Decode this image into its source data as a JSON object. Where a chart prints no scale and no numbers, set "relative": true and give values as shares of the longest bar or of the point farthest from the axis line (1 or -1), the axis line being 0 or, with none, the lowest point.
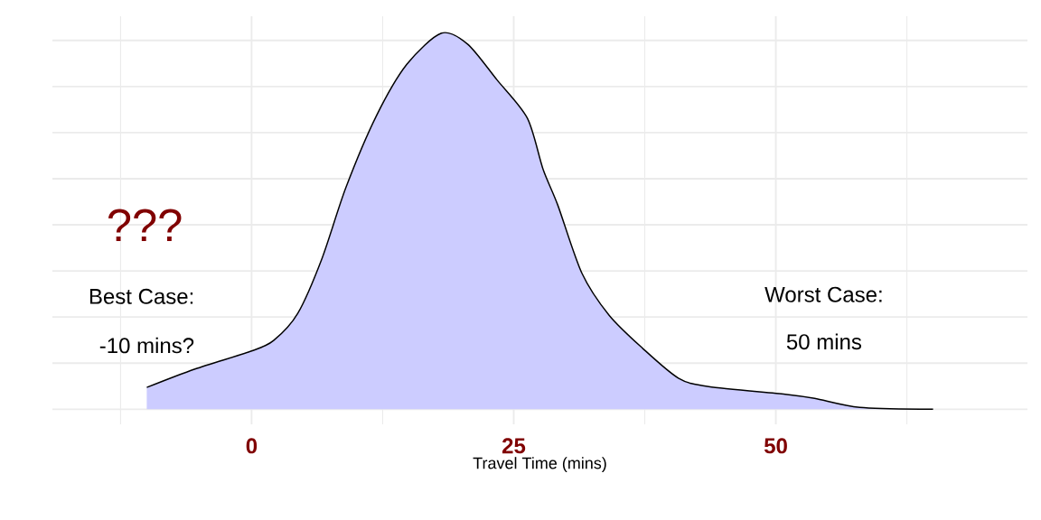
{
  "chart_data": {
    "type": "area",
    "relative": true,
    "xlabel": "Travel Time (mins)",
    "x": [
      -10,
      -5.4,
      0,
      2.1,
      4.4,
      6.7,
      9.0,
      11.9,
      14.8,
      18.1,
      20.6,
      23.4,
      26.3,
      27.8,
      29.2,
      31.5,
      34.1,
      37.3,
      40.7,
      43.6,
      50.9,
      53.7,
      58.0,
      65.0
    ],
    "values": [
      0.058,
      0.107,
      0.155,
      0.183,
      0.255,
      0.4,
      0.59,
      0.78,
      0.917,
      1.0,
      0.971,
      0.876,
      0.774,
      0.638,
      0.543,
      0.362,
      0.25,
      0.162,
      0.083,
      0.06,
      0.04,
      0.029,
      0.005,
      0.0
    ],
    "color": "#ccccff",
    "xlim": [
      -19,
      74
    ],
    "xticks": [
      0,
      25,
      50
    ],
    "grid": true,
    "annotations": [
      "???",
      "Best Case:",
      "-10 mins?",
      "Worst Case:",
      "50 mins"
    ]
  }
}
